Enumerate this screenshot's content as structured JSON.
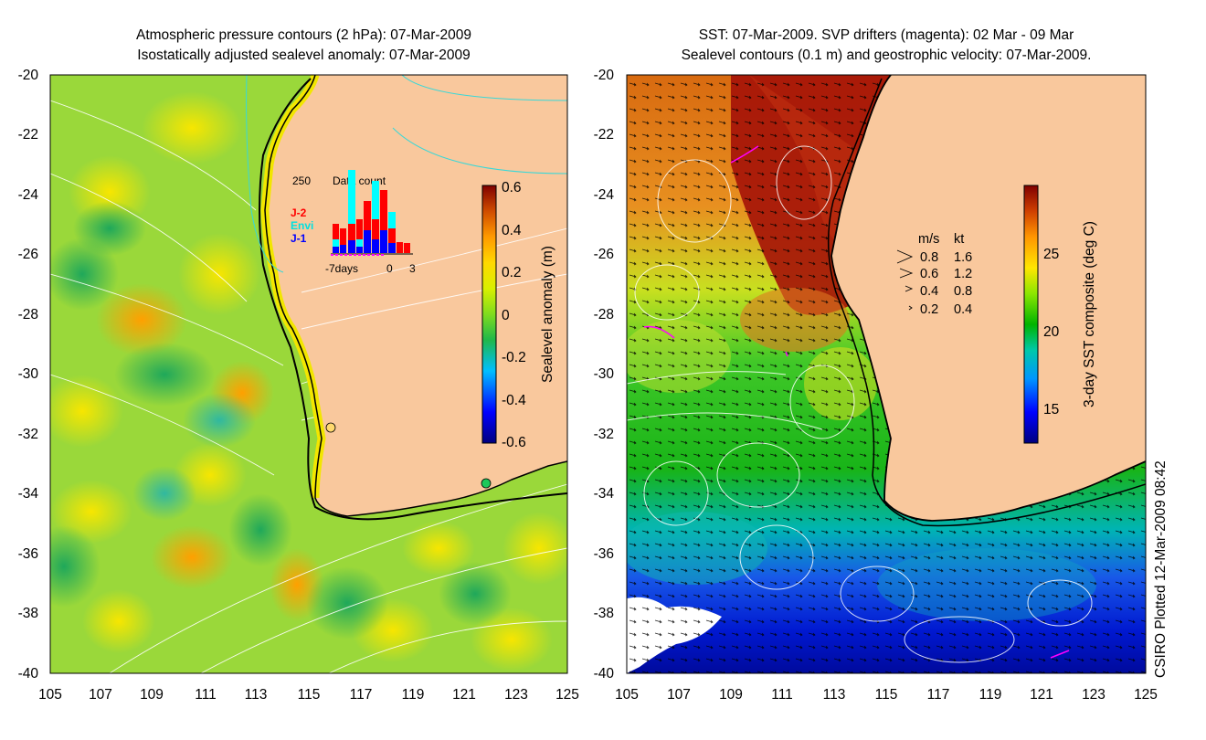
{
  "left_panel": {
    "title_line1": "Atmospheric pressure contours (2 hPa): 07-Mar-2009",
    "title_line2": "Isostatically adjusted sealevel anomaly: 07-Mar-2009",
    "lat_ticks": [
      "-20",
      "-22",
      "-24",
      "-26",
      "-28",
      "-30",
      "-32",
      "-34",
      "-36",
      "-38",
      "-40"
    ],
    "lon_ticks": [
      "105",
      "107",
      "109",
      "111",
      "113",
      "115",
      "117",
      "119",
      "121",
      "123",
      "125"
    ],
    "colorbar": {
      "label": "Sealevel anomaly (m)",
      "ticks": [
        "0.6",
        "0.4",
        "0.2",
        "0",
        "-0.2",
        "-0.4",
        "-0.6"
      ]
    },
    "data_count": {
      "title": "Data count",
      "max_label": "250",
      "x_start": "-7days",
      "x_zero": "0",
      "x_end": "3",
      "legend": [
        {
          "label": "J-2",
          "color": "#ff0000"
        },
        {
          "label": "Envi",
          "color": "#00ffff"
        },
        {
          "label": "J-1",
          "color": "#0000ff"
        }
      ]
    }
  },
  "right_panel": {
    "title_line1": "SST: 07-Mar-2009. SVP drifters (magenta): 02 Mar - 09 Mar",
    "title_line2": "Sealevel contours (0.1 m) and geostrophic velocity: 07-Mar-2009.",
    "lat_ticks": [
      "-20",
      "-22",
      "-24",
      "-26",
      "-28",
      "-30",
      "-32",
      "-34",
      "-36",
      "-38",
      "-40"
    ],
    "lon_ticks": [
      "105",
      "107",
      "109",
      "111",
      "113",
      "115",
      "117",
      "119",
      "121",
      "123",
      "125"
    ],
    "colorbar": {
      "label": "3-day SST composite (deg C)",
      "ticks": [
        "25",
        "20",
        "15"
      ]
    },
    "velocity_legend": {
      "header_ms": "m/s",
      "header_kt": "kt",
      "rows": [
        {
          "ms": "0.8",
          "kt": "1.6"
        },
        {
          "ms": "0.6",
          "kt": "1.2"
        },
        {
          "ms": "0.4",
          "kt": "0.8"
        },
        {
          "ms": "0.2",
          "kt": "0.4"
        }
      ]
    }
  },
  "credit": "CSIRO Plotted 12-Mar-2009 08:42",
  "colors": {
    "land": "#f9c89d",
    "sla_ramp": [
      "#00007f",
      "#0000ff",
      "#00bfff",
      "#00ff7f",
      "#2db32d",
      "#7fff00",
      "#ffff00",
      "#ffbf00",
      "#ff7f00",
      "#c84000",
      "#800000"
    ],
    "sst_ramp": [
      "#00007f",
      "#0000ff",
      "#0080ff",
      "#00c8c8",
      "#00b400",
      "#64e600",
      "#ffff00",
      "#ffa000",
      "#e06000",
      "#a00000",
      "#800000"
    ]
  }
}
